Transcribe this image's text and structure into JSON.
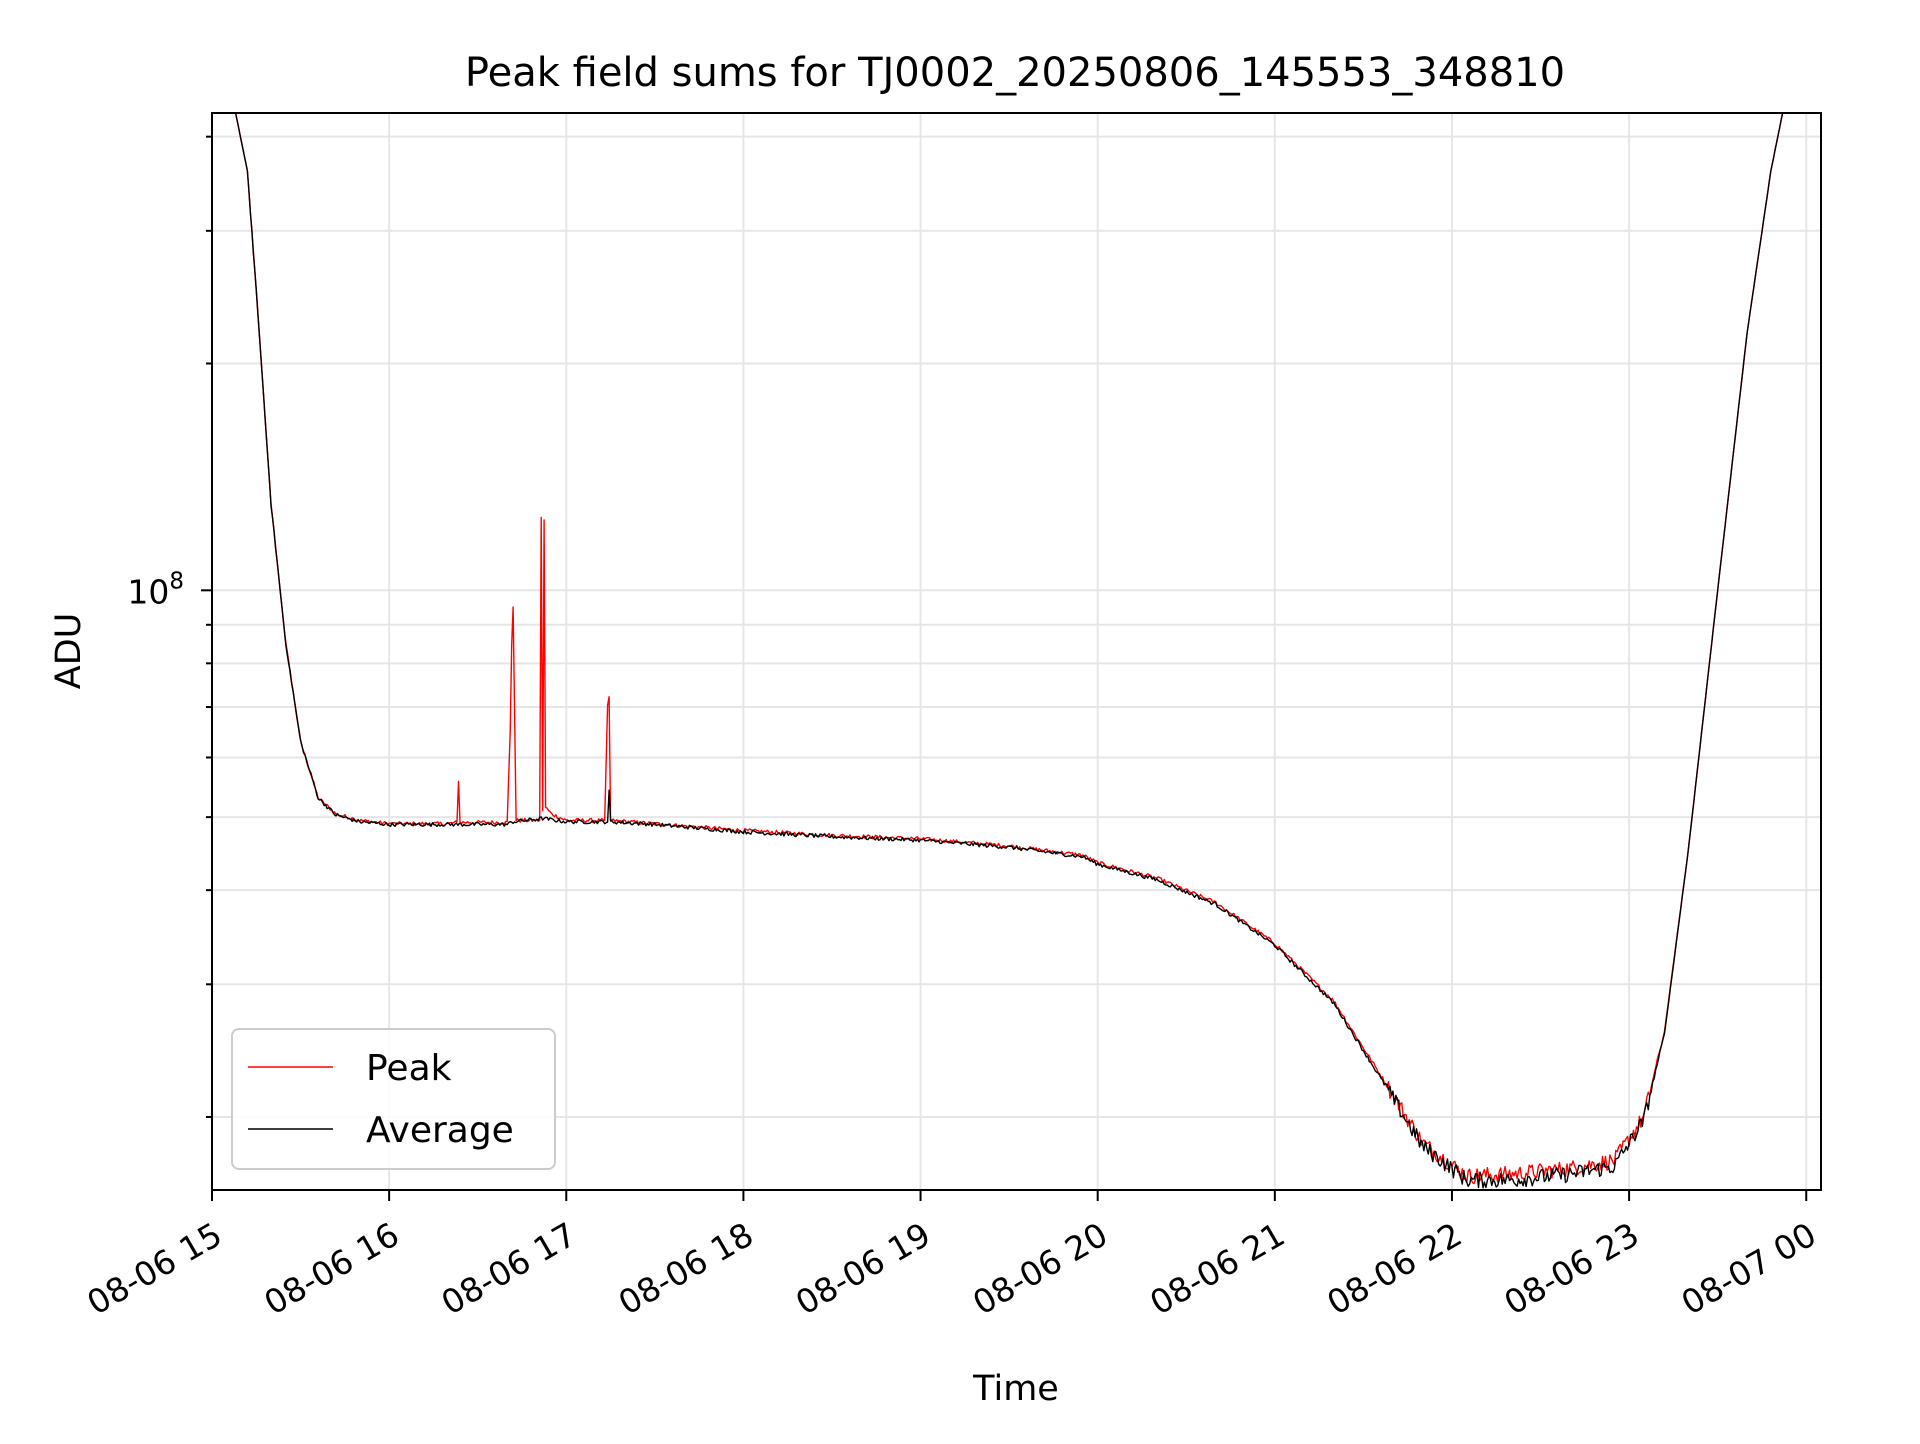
{
  "chart_data": {
    "type": "line",
    "title": "Peak field sums for TJ0002_20250806_145553_348810",
    "xlabel": "Time",
    "ylabel": "ADU",
    "yscale": "log",
    "grid": true,
    "legend_position": "lower-left",
    "x_ticks": [
      "08-06 15",
      "08-06 16",
      "08-06 17",
      "08-06 18",
      "08-06 19",
      "08-06 20",
      "08-06 21",
      "08-06 22",
      "08-06 23",
      "08-07 00"
    ],
    "x_range": [
      "2025-08-06 15:00",
      "2025-08-07 00:05"
    ],
    "y_range": [
      16000000,
      430000000
    ],
    "y_tick_label": {
      "base": "10",
      "exponent": "8",
      "value": 100000000
    },
    "colors": {
      "peak": "#ff0000",
      "average": "#000000",
      "grid": "#e6e6e6"
    },
    "series": [
      {
        "name": "Peak",
        "color": "#ff0000",
        "points": [
          [
            "2025-08-06 15:00",
            430000000
          ],
          [
            "2025-08-06 15:08",
            430000000
          ],
          [
            "2025-08-06 15:12",
            360000000
          ],
          [
            "2025-08-06 15:16",
            220000000
          ],
          [
            "2025-08-06 15:20",
            130000000
          ],
          [
            "2025-08-06 15:25",
            85000000
          ],
          [
            "2025-08-06 15:30",
            63000000
          ],
          [
            "2025-08-06 15:36",
            53000000
          ],
          [
            "2025-08-06 15:42",
            50500000
          ],
          [
            "2025-08-06 15:50",
            49500000
          ],
          [
            "2025-08-06 16:00",
            49000000
          ],
          [
            "2025-08-06 16:20",
            49000000
          ],
          [
            "2025-08-06 16:23",
            49200000
          ],
          [
            "2025-08-06 16:23.5",
            56000000
          ],
          [
            "2025-08-06 16:24",
            49200000
          ],
          [
            "2025-08-06 16:40",
            49200000
          ],
          [
            "2025-08-06 16:41",
            65000000
          ],
          [
            "2025-08-06 16:41.5",
            85000000
          ],
          [
            "2025-08-06 16:42",
            95000000
          ],
          [
            "2025-08-06 16:43",
            49500000
          ],
          [
            "2025-08-06 16:51",
            49500000
          ],
          [
            "2025-08-06 16:51.5",
            125000000
          ],
          [
            "2025-08-06 16:52",
            51000000
          ],
          [
            "2025-08-06 16:52.5",
            124000000
          ],
          [
            "2025-08-06 16:53",
            51500000
          ],
          [
            "2025-08-06 16:55",
            50500000
          ],
          [
            "2025-08-06 17:00",
            49500000
          ],
          [
            "2025-08-06 17:13",
            49500000
          ],
          [
            "2025-08-06 17:14",
            70000000
          ],
          [
            "2025-08-06 17:14.5",
            72000000
          ],
          [
            "2025-08-06 17:15",
            49500000
          ],
          [
            "2025-08-06 17:30",
            49000000
          ],
          [
            "2025-08-06 18:00",
            48000000
          ],
          [
            "2025-08-06 18:30",
            47300000
          ],
          [
            "2025-08-06 19:00",
            46800000
          ],
          [
            "2025-08-06 19:30",
            45800000
          ],
          [
            "2025-08-06 19:55",
            44500000
          ],
          [
            "2025-08-06 20:00",
            43500000
          ],
          [
            "2025-08-06 20:20",
            41500000
          ],
          [
            "2025-08-06 20:40",
            38500000
          ],
          [
            "2025-08-06 21:00",
            34000000
          ],
          [
            "2025-08-06 21:20",
            28500000
          ],
          [
            "2025-08-06 21:35",
            23000000
          ],
          [
            "2025-08-06 21:50",
            18500000
          ],
          [
            "2025-08-06 22:05",
            16700000
          ],
          [
            "2025-08-06 22:20",
            16800000
          ],
          [
            "2025-08-06 22:40",
            17100000
          ],
          [
            "2025-08-06 22:55",
            17500000
          ],
          [
            "2025-08-06 23:05",
            20000000
          ],
          [
            "2025-08-06 23:12",
            26000000
          ],
          [
            "2025-08-06 23:20",
            45000000
          ],
          [
            "2025-08-06 23:30",
            100000000
          ],
          [
            "2025-08-06 23:40",
            220000000
          ],
          [
            "2025-08-06 23:48",
            360000000
          ],
          [
            "2025-08-06 23:52",
            430000000
          ],
          [
            "2025-08-07 00:01",
            430000000
          ]
        ]
      },
      {
        "name": "Average",
        "color": "#000000",
        "points": [
          [
            "2025-08-06 15:00",
            430000000
          ],
          [
            "2025-08-06 15:08",
            430000000
          ],
          [
            "2025-08-06 15:12",
            360000000
          ],
          [
            "2025-08-06 15:16",
            220000000
          ],
          [
            "2025-08-06 15:20",
            130000000
          ],
          [
            "2025-08-06 15:25",
            85000000
          ],
          [
            "2025-08-06 15:30",
            63000000
          ],
          [
            "2025-08-06 15:36",
            53000000
          ],
          [
            "2025-08-06 15:42",
            50300000
          ],
          [
            "2025-08-06 15:50",
            49300000
          ],
          [
            "2025-08-06 16:00",
            48900000
          ],
          [
            "2025-08-06 16:40",
            48900000
          ],
          [
            "2025-08-06 16:42",
            49300000
          ],
          [
            "2025-08-06 16:52",
            49800000
          ],
          [
            "2025-08-06 17:00",
            49300000
          ],
          [
            "2025-08-06 17:14",
            49300000
          ],
          [
            "2025-08-06 17:14.5",
            54000000
          ],
          [
            "2025-08-06 17:15",
            49300000
          ],
          [
            "2025-08-06 17:30",
            48900000
          ],
          [
            "2025-08-06 18:00",
            47800000
          ],
          [
            "2025-08-06 18:30",
            47100000
          ],
          [
            "2025-08-06 19:00",
            46600000
          ],
          [
            "2025-08-06 19:30",
            45600000
          ],
          [
            "2025-08-06 19:55",
            44300000
          ],
          [
            "2025-08-06 20:00",
            43300000
          ],
          [
            "2025-08-06 20:20",
            41300000
          ],
          [
            "2025-08-06 20:40",
            38300000
          ],
          [
            "2025-08-06 21:00",
            33800000
          ],
          [
            "2025-08-06 21:20",
            28300000
          ],
          [
            "2025-08-06 21:35",
            22800000
          ],
          [
            "2025-08-06 21:50",
            18300000
          ],
          [
            "2025-08-06 22:05",
            16500000
          ],
          [
            "2025-08-06 22:20",
            16500000
          ],
          [
            "2025-08-06 22:40",
            16800000
          ],
          [
            "2025-08-06 22:55",
            17200000
          ],
          [
            "2025-08-06 23:05",
            19800000
          ],
          [
            "2025-08-06 23:12",
            25800000
          ],
          [
            "2025-08-06 23:20",
            45000000
          ],
          [
            "2025-08-06 23:30",
            100000000
          ],
          [
            "2025-08-06 23:40",
            220000000
          ],
          [
            "2025-08-06 23:48",
            360000000
          ],
          [
            "2025-08-06 23:52",
            430000000
          ],
          [
            "2025-08-07 00:01",
            430000000
          ]
        ]
      }
    ]
  }
}
